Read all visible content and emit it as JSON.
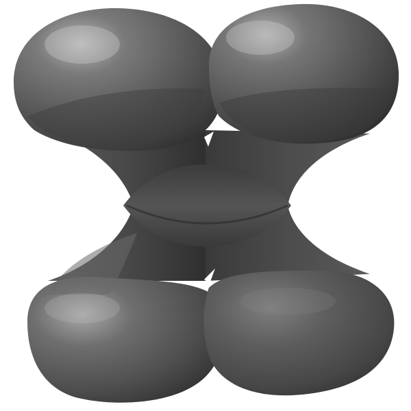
{
  "image": {
    "subject": "3d-lobed-orbital-render",
    "background": "#ffffff",
    "colors": {
      "body_dark": "#3a3a3a",
      "body_mid": "#5e5e5e",
      "body_light": "#8a8a8a",
      "highlight": "#c8c8c8"
    }
  }
}
